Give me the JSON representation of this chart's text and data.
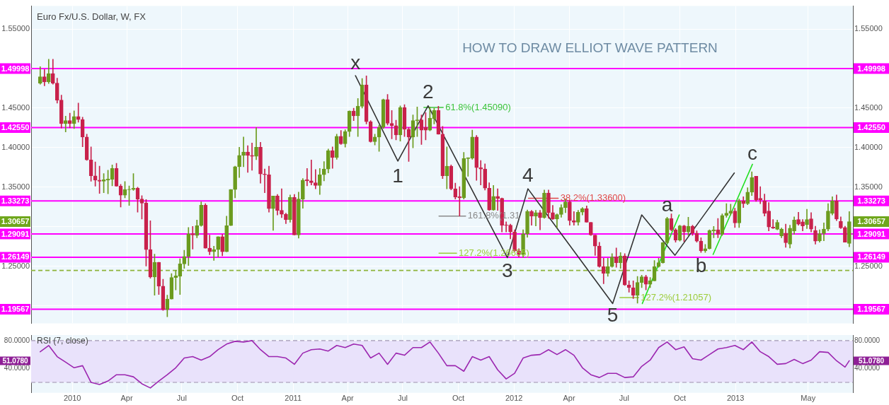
{
  "chart_data": [
    {
      "type": "candlestick",
      "title": "Euro Fx/U.S. Dollar, W, FX",
      "subtitle": "HOW TO DRAW ELLIOT WAVE PATTERN",
      "x": [
        "2009-11-09",
        "2009-11-16",
        "2009-11-23",
        "2009-11-30",
        "2009-12-07",
        "2009-12-14",
        "2009-12-21",
        "2009-12-28",
        "2010-01-04",
        "2010-01-11",
        "2010-01-18",
        "2010-01-25",
        "2010-02-01",
        "2010-02-08",
        "2010-02-15",
        "2010-02-22",
        "2010-03-01",
        "2010-03-08",
        "2010-03-15",
        "2010-03-22",
        "2010-03-29",
        "2010-04-05",
        "2010-04-12",
        "2010-04-19",
        "2010-04-26",
        "2010-05-03",
        "2010-05-10",
        "2010-05-17",
        "2010-05-24",
        "2010-05-31",
        "2010-06-07",
        "2010-06-14",
        "2010-06-21",
        "2010-06-28",
        "2010-07-05",
        "2010-07-12",
        "2010-07-19",
        "2010-07-26",
        "2010-08-02",
        "2010-08-09",
        "2010-08-16",
        "2010-08-23",
        "2010-08-30",
        "2010-09-06",
        "2010-09-13",
        "2010-09-20",
        "2010-09-27",
        "2010-10-04",
        "2010-10-11",
        "2010-10-18",
        "2010-10-25",
        "2010-11-01",
        "2010-11-08",
        "2010-11-15",
        "2010-11-22",
        "2010-11-29",
        "2010-12-06",
        "2010-12-13",
        "2010-12-20",
        "2010-12-27",
        "2011-01-03",
        "2011-01-10",
        "2011-01-17",
        "2011-01-24",
        "2011-01-31",
        "2011-02-07",
        "2011-02-14",
        "2011-02-21",
        "2011-02-28",
        "2011-03-07",
        "2011-03-14",
        "2011-03-21",
        "2011-03-28",
        "2011-04-04",
        "2011-04-11",
        "2011-04-18",
        "2011-04-25",
        "2011-05-02",
        "2011-05-09",
        "2011-05-16",
        "2011-05-23",
        "2011-05-30",
        "2011-06-06",
        "2011-06-13",
        "2011-06-20",
        "2011-06-27",
        "2011-07-04",
        "2011-07-11",
        "2011-07-18",
        "2011-07-25",
        "2011-08-01",
        "2011-08-08",
        "2011-08-15",
        "2011-08-22",
        "2011-08-29",
        "2011-09-05",
        "2011-09-12",
        "2011-09-19",
        "2011-09-26",
        "2011-10-03",
        "2011-10-10",
        "2011-10-17",
        "2011-10-24",
        "2011-10-31",
        "2011-11-07",
        "2011-11-14",
        "2011-11-21",
        "2011-11-28",
        "2011-12-05",
        "2011-12-12",
        "2011-12-19",
        "2011-12-26",
        "2012-01-02",
        "2012-01-09",
        "2012-01-16",
        "2012-01-23",
        "2012-01-30",
        "2012-02-06",
        "2012-02-13",
        "2012-02-20",
        "2012-02-27",
        "2012-03-05",
        "2012-03-12",
        "2012-03-19",
        "2012-03-26",
        "2012-04-02",
        "2012-04-09",
        "2012-04-16",
        "2012-04-23",
        "2012-04-30",
        "2012-05-07",
        "2012-05-14",
        "2012-05-21",
        "2012-05-28",
        "2012-06-04",
        "2012-06-11",
        "2012-06-18",
        "2012-06-25",
        "2012-07-02",
        "2012-07-09",
        "2012-07-16",
        "2012-07-23",
        "2012-07-30",
        "2012-08-06",
        "2012-08-13",
        "2012-08-20",
        "2012-08-27",
        "2012-09-03",
        "2012-09-10",
        "2012-09-17",
        "2012-09-24",
        "2012-10-01",
        "2012-10-08",
        "2012-10-15",
        "2012-10-22",
        "2012-10-29",
        "2012-11-05",
        "2012-11-12",
        "2012-11-19",
        "2012-11-26",
        "2012-12-03",
        "2012-12-10",
        "2012-12-17",
        "2012-12-24",
        "2012-12-31",
        "2013-01-07",
        "2013-01-14",
        "2013-01-21",
        "2013-01-28",
        "2013-02-04",
        "2013-02-11",
        "2013-02-18",
        "2013-02-25",
        "2013-03-04",
        "2013-03-11",
        "2013-03-18",
        "2013-03-25",
        "2013-04-01",
        "2013-04-08",
        "2013-04-15",
        "2013-04-22",
        "2013-04-29",
        "2013-05-06",
        "2013-05-13",
        "2013-05-20",
        "2013-05-27",
        "2013-06-03",
        "2013-06-10",
        "2013-06-17",
        "2013-06-24",
        "2013-07-01",
        "2013-07-08"
      ],
      "ohlc": [
        [
          1.4816,
          1.5023,
          1.4802,
          1.4897
        ],
        [
          1.4897,
          1.4989,
          1.4782,
          1.4831
        ],
        [
          1.4831,
          1.5118,
          1.481,
          1.4937
        ],
        [
          1.4937,
          1.5118,
          1.4802,
          1.4816
        ],
        [
          1.4816,
          1.4879,
          1.4563,
          1.4601
        ],
        [
          1.4601,
          1.4664,
          1.4247,
          1.4305
        ],
        [
          1.4305,
          1.4399,
          1.4198,
          1.4342
        ],
        [
          1.4342,
          1.4437,
          1.425,
          1.4305
        ],
        [
          1.4305,
          1.4466,
          1.4241,
          1.4394
        ],
        [
          1.4394,
          1.4563,
          1.4322,
          1.4356
        ],
        [
          1.4356,
          1.4385,
          1.4011,
          1.4135
        ],
        [
          1.4135,
          1.417,
          1.3839,
          1.3845
        ],
        [
          1.3845,
          1.4011,
          1.3575,
          1.3644
        ],
        [
          1.3644,
          1.3819,
          1.3514,
          1.3589
        ],
        [
          1.3589,
          1.3767,
          1.3422,
          1.3575
        ],
        [
          1.3575,
          1.3672,
          1.3431,
          1.3595
        ],
        [
          1.3589,
          1.3715,
          1.3417,
          1.3603
        ],
        [
          1.36,
          1.3782,
          1.3517,
          1.3738
        ],
        [
          1.3738,
          1.3802,
          1.351,
          1.3514
        ],
        [
          1.3514,
          1.3537,
          1.325,
          1.3399
        ],
        [
          1.3399,
          1.3572,
          1.3365,
          1.3471
        ],
        [
          1.3468,
          1.3517,
          1.327,
          1.3474
        ],
        [
          1.3471,
          1.3672,
          1.346,
          1.3488
        ],
        [
          1.3488,
          1.35,
          1.3184,
          1.335
        ],
        [
          1.335,
          1.3394,
          1.3098,
          1.3299
        ],
        [
          1.3299,
          1.3345,
          1.2503,
          1.2712
        ],
        [
          1.2712,
          1.3077,
          1.235,
          1.2365
        ],
        [
          1.2365,
          1.2655,
          1.2135,
          1.2552
        ],
        [
          1.2552,
          1.2552,
          1.2143,
          1.225
        ],
        [
          1.225,
          1.2336,
          1.1942,
          1.1951
        ],
        [
          1.1951,
          1.2135,
          1.1862,
          1.2086
        ],
        [
          1.2086,
          1.2408,
          1.2086,
          1.2359
        ],
        [
          1.2359,
          1.2451,
          1.2201,
          1.2379
        ],
        [
          1.2373,
          1.2597,
          1.2143,
          1.2531
        ],
        [
          1.2531,
          1.2704,
          1.2474,
          1.2626
        ],
        [
          1.2626,
          1.2991,
          1.2511,
          1.2911
        ],
        [
          1.2914,
          1.3005,
          1.2718,
          1.2896
        ],
        [
          1.2891,
          1.3086,
          1.2862,
          1.3014
        ],
        [
          1.3014,
          1.3316,
          1.3006,
          1.3273
        ],
        [
          1.3273,
          1.3293,
          1.273,
          1.273
        ],
        [
          1.273,
          1.2896,
          1.2646,
          1.2684
        ],
        [
          1.2684,
          1.2755,
          1.2574,
          1.2712
        ],
        [
          1.2712,
          1.2876,
          1.2618,
          1.2876
        ],
        [
          1.2876,
          1.2905,
          1.2632,
          1.2684
        ],
        [
          1.2684,
          1.3135,
          1.2684,
          1.3014
        ],
        [
          1.3014,
          1.3471,
          1.3014,
          1.3471
        ],
        [
          1.3471,
          1.3767,
          1.3365,
          1.3759
        ],
        [
          1.3759,
          1.4006,
          1.3623,
          1.3902
        ],
        [
          1.3902,
          1.4135,
          1.3759,
          1.3945
        ],
        [
          1.3945,
          1.4026,
          1.3687,
          1.3902
        ],
        [
          1.3902,
          1.406,
          1.3715,
          1.3891
        ],
        [
          1.3891,
          1.4256,
          1.3848,
          1.4006
        ],
        [
          1.4006,
          1.4069,
          1.3552,
          1.3667
        ],
        [
          1.3667,
          1.373,
          1.3431,
          1.3658
        ],
        [
          1.3658,
          1.3767,
          1.3184,
          1.323
        ],
        [
          1.323,
          1.3388,
          1.2954,
          1.3388
        ],
        [
          1.3388,
          1.3408,
          1.3149,
          1.3207
        ],
        [
          1.3207,
          1.348,
          1.3115,
          1.3158
        ],
        [
          1.3158,
          1.3172,
          1.304,
          1.3092
        ],
        [
          1.3092,
          1.3402,
          1.3057,
          1.3371
        ],
        [
          1.3371,
          1.3408,
          1.2896,
          1.2896
        ],
        [
          1.2896,
          1.3437,
          1.2856,
          1.335
        ],
        [
          1.335,
          1.3609,
          1.3235,
          1.3589
        ],
        [
          1.3595,
          1.3738,
          1.3517,
          1.358
        ],
        [
          1.358,
          1.3845,
          1.3529,
          1.3557
        ],
        [
          1.3557,
          1.3724,
          1.348,
          1.3523
        ],
        [
          1.3523,
          1.3738,
          1.3408,
          1.3658
        ],
        [
          1.3658,
          1.3825,
          1.358,
          1.373
        ],
        [
          1.373,
          1.3983,
          1.3681,
          1.3963
        ],
        [
          1.3963,
          1.4011,
          1.3738,
          1.3876
        ],
        [
          1.3876,
          1.417,
          1.3853,
          1.4144
        ],
        [
          1.4144,
          1.4218,
          1.404,
          1.4049
        ],
        [
          1.4049,
          1.4227,
          1.4006,
          1.4204
        ],
        [
          1.4204,
          1.4466,
          1.4141,
          1.4463
        ],
        [
          1.4463,
          1.45,
          1.4342,
          1.4402
        ],
        [
          1.4402,
          1.4621,
          1.4141,
          1.4523
        ],
        [
          1.4523,
          1.4874,
          1.45,
          1.4793
        ],
        [
          1.4793,
          1.4908,
          1.4299,
          1.4328
        ],
        [
          1.4328,
          1.4342,
          1.4069,
          1.4075
        ],
        [
          1.4075,
          1.417,
          1.4034,
          1.4135
        ],
        [
          1.4135,
          1.4285,
          1.3954,
          1.4256
        ],
        [
          1.4256,
          1.4615,
          1.4241,
          1.4609
        ],
        [
          1.4609,
          1.4673,
          1.4285,
          1.4308
        ],
        [
          1.4308,
          1.4471,
          1.4112,
          1.4279
        ],
        [
          1.4279,
          1.4348,
          1.4098,
          1.4161
        ],
        [
          1.4161,
          1.4529,
          1.4083,
          1.4509
        ],
        [
          1.4509,
          1.4543,
          1.4141,
          1.4233
        ],
        [
          1.4233,
          1.4256,
          1.3825,
          1.4135
        ],
        [
          1.4135,
          1.4414,
          1.3997,
          1.4342
        ],
        [
          1.4342,
          1.4514,
          1.4141,
          1.4351
        ],
        [
          1.4351,
          1.4414,
          1.404,
          1.4221
        ],
        [
          1.4256,
          1.4443,
          1.4098,
          1.4221
        ],
        [
          1.4221,
          1.4514,
          1.4213,
          1.4371
        ],
        [
          1.4365,
          1.45,
          1.4299,
          1.4471
        ],
        [
          1.4471,
          1.4523,
          1.417,
          1.417
        ],
        [
          1.417,
          1.427,
          1.3609,
          1.3644
        ],
        [
          1.3644,
          1.4011,
          1.348,
          1.3767
        ],
        [
          1.3767,
          1.3782,
          1.3466,
          1.348
        ],
        [
          1.348,
          1.3552,
          1.3351,
          1.3374
        ],
        [
          1.3379,
          1.3508,
          1.3135,
          1.3365
        ],
        [
          1.3365,
          1.394,
          1.335,
          1.3862
        ],
        [
          1.3862,
          1.3873,
          1.3638,
          1.3873
        ],
        [
          1.3868,
          1.4221,
          1.3853,
          1.4135
        ],
        [
          1.4135,
          1.4155,
          1.3586,
          1.3747
        ],
        [
          1.3747,
          1.3839,
          1.3529,
          1.373
        ],
        [
          1.373,
          1.3796,
          1.3465,
          1.3488
        ],
        [
          1.3488,
          1.3557,
          1.3207,
          1.3212
        ],
        [
          1.3212,
          1.3523,
          1.3207,
          1.3385
        ],
        [
          1.3385,
          1.348,
          1.3207,
          1.3359
        ],
        [
          1.3359,
          1.3365,
          1.2934,
          1.302
        ],
        [
          1.3023,
          1.3063,
          1.2934,
          1.302
        ],
        [
          1.302,
          1.3034,
          1.2847,
          1.2934
        ],
        [
          1.2934,
          1.2962,
          1.2689,
          1.2695
        ],
        [
          1.2695,
          1.2724,
          1.2618,
          1.2652
        ],
        [
          1.2652,
          1.2962,
          1.2612,
          1.2911
        ],
        [
          1.2911,
          1.3212,
          1.2868,
          1.3195
        ],
        [
          1.3195,
          1.3207,
          1.302,
          1.3135
        ],
        [
          1.3135,
          1.3207,
          1.3011,
          1.3178
        ],
        [
          1.3178,
          1.3207,
          1.2962,
          1.3115
        ],
        [
          1.3115,
          1.3465,
          1.3106,
          1.3428
        ],
        [
          1.3428,
          1.3465,
          1.3106,
          1.3178
        ],
        [
          1.3178,
          1.327,
          1.3092,
          1.3097
        ],
        [
          1.3097,
          1.3164,
          1.2991,
          1.3155
        ],
        [
          1.3155,
          1.3279,
          1.312,
          1.3244
        ],
        [
          1.3244,
          1.335,
          1.3178,
          1.3316
        ],
        [
          1.3316,
          1.3336,
          1.302,
          1.3077
        ],
        [
          1.3077,
          1.3192,
          1.302,
          1.3057
        ],
        [
          1.3057,
          1.3207,
          1.302,
          1.3184
        ],
        [
          1.3184,
          1.3244,
          1.3149,
          1.323
        ],
        [
          1.323,
          1.3264,
          1.3057,
          1.3057
        ],
        [
          1.3057,
          1.3057,
          1.2891,
          1.2896
        ],
        [
          1.2896,
          1.2896,
          1.2638,
          1.2756
        ],
        [
          1.2756,
          1.2804,
          1.2488,
          1.2497
        ],
        [
          1.2497,
          1.2603,
          1.2281,
          1.2411
        ],
        [
          1.2411,
          1.2603,
          1.2373,
          1.2497
        ],
        [
          1.2497,
          1.2661,
          1.2488,
          1.2618
        ],
        [
          1.2618,
          1.2733,
          1.2488,
          1.2546
        ],
        [
          1.2546,
          1.2675,
          1.2474,
          1.2632
        ],
        [
          1.2632,
          1.2661,
          1.2258,
          1.2264
        ],
        [
          1.2264,
          1.2316,
          1.2172,
          1.223
        ],
        [
          1.223,
          1.2316,
          1.2092,
          1.2135
        ],
        [
          1.2135,
          1.2373,
          1.2034,
          1.2296
        ],
        [
          1.2296,
          1.2388,
          1.223,
          1.2368
        ],
        [
          1.2368,
          1.2388,
          1.2201,
          1.2273
        ],
        [
          1.2273,
          1.2359,
          1.223,
          1.2316
        ],
        [
          1.2316,
          1.2574,
          1.2316,
          1.2497
        ],
        [
          1.2497,
          1.2603,
          1.2488,
          1.2546
        ],
        [
          1.2546,
          1.2804,
          1.254,
          1.2799
        ],
        [
          1.2799,
          1.312,
          1.279,
          1.3106
        ],
        [
          1.3106,
          1.3164,
          1.2948,
          1.2962
        ],
        [
          1.2962,
          1.2977,
          1.2804,
          1.2833
        ],
        [
          1.2833,
          1.302,
          1.2819,
          1.3011
        ],
        [
          1.3011,
          1.302,
          1.2813,
          1.2934
        ],
        [
          1.2934,
          1.312,
          1.2891,
          1.3006
        ],
        [
          1.3006,
          1.302,
          1.2891,
          1.2919
        ],
        [
          1.2919,
          1.2948,
          1.2804,
          1.2819
        ],
        [
          1.2819,
          1.2862,
          1.2675,
          1.2695
        ],
        [
          1.2695,
          1.2776,
          1.2675,
          1.2724
        ],
        [
          1.2724,
          1.2962,
          1.2718,
          1.2954
        ],
        [
          1.2948,
          1.3005,
          1.2862,
          1.2962
        ],
        [
          1.2962,
          1.3106,
          1.2862,
          1.2905
        ],
        [
          1.2905,
          1.3164,
          1.2891,
          1.3143
        ],
        [
          1.3143,
          1.3293,
          1.312,
          1.3172
        ],
        [
          1.3172,
          1.3287,
          1.3149,
          1.3198
        ],
        [
          1.3198,
          1.3235,
          1.2991,
          1.3049
        ],
        [
          1.3049,
          1.335,
          1.2991,
          1.3327
        ],
        [
          1.3327,
          1.3379,
          1.3244,
          1.3293
        ],
        [
          1.3293,
          1.3494,
          1.3279,
          1.3437
        ],
        [
          1.3437,
          1.3695,
          1.3394,
          1.3623
        ],
        [
          1.3638,
          1.3638,
          1.3322,
          1.3342
        ],
        [
          1.3359,
          1.3508,
          1.3293,
          1.3342
        ],
        [
          1.3327,
          1.3414,
          1.3135,
          1.3169
        ],
        [
          1.3198,
          1.3307,
          1.2948,
          1.2997
        ],
        [
          1.2997,
          1.3092,
          1.2977,
          1.2983
        ],
        [
          1.2968,
          1.3086,
          1.2962,
          1.3057
        ],
        [
          1.2885,
          1.2985,
          1.2862,
          1.2971
        ],
        [
          1.2919,
          1.3034,
          1.2741,
          1.2799
        ],
        [
          1.2781,
          1.302,
          1.2732,
          1.2983
        ],
        [
          1.2948,
          1.3126,
          1.2905,
          1.3086
        ],
        [
          1.3092,
          1.3184,
          1.302,
          1.3034
        ],
        [
          1.3063,
          1.3092,
          1.2948,
          1.3011
        ],
        [
          1.3026,
          1.3221,
          1.2977,
          1.3092
        ],
        [
          1.31,
          1.3178,
          1.2934,
          1.2971
        ],
        [
          1.2954,
          1.3006,
          1.2781,
          1.2819
        ],
        [
          1.2824,
          1.2962,
          1.2804,
          1.2914
        ],
        [
          1.2914,
          1.3049,
          1.2824,
          1.2971
        ],
        [
          1.2971,
          1.3293,
          1.2948,
          1.3198
        ],
        [
          1.3169,
          1.3379,
          1.3149,
          1.3327
        ],
        [
          1.3327,
          1.3402,
          1.3077,
          1.3097
        ],
        [
          1.3069,
          1.3126,
          1.2977,
          1.2985
        ],
        [
          1.2991,
          1.3006,
          1.2804,
          1.2804
        ],
        [
          1.279,
          1.3192,
          1.2747,
          1.30657
        ]
      ],
      "colors": [
        "#6b9b1e",
        "#c8214b",
        "#6b9b1e",
        "#c8214b",
        "#c8214b",
        "#c8214b",
        "#6b9b1e",
        "#c8214b",
        "#6b9b1e",
        "#c8214b",
        "#c8214b",
        "#c8214b",
        "#c8214b",
        "#c8214b",
        "#c8214b",
        "#6b9b1e",
        "#6b9b1e",
        "#6b9b1e",
        "#c8214b",
        "#c8214b",
        "#6b9b1e",
        "#6b9b1e",
        "#6b9b1e",
        "#c8214b",
        "#c8214b",
        "#c8214b",
        "#c8214b",
        "#6b9b1e",
        "#c8214b",
        "#c8214b",
        "#6b9b1e",
        "#6b9b1e",
        "#6b9b1e",
        "#6b9b1e",
        "#6b9b1e",
        "#6b9b1e",
        "#c8214b",
        "#6b9b1e",
        "#6b9b1e",
        "#c8214b",
        "#c8214b",
        "#6b9b1e",
        "#6b9b1e",
        "#c8214b",
        "#6b9b1e",
        "#6b9b1e",
        "#6b9b1e",
        "#6b9b1e",
        "#6b9b1e",
        "#c8214b",
        "#c8214b",
        "#6b9b1e",
        "#c8214b",
        "#c8214b",
        "#c8214b",
        "#6b9b1e",
        "#c8214b",
        "#c8214b",
        "#c8214b",
        "#6b9b1e",
        "#c8214b",
        "#6b9b1e",
        "#6b9b1e",
        "#c8214b",
        "#c8214b",
        "#c8214b",
        "#6b9b1e",
        "#6b9b1e",
        "#6b9b1e",
        "#c8214b",
        "#6b9b1e",
        "#c8214b",
        "#6b9b1e",
        "#6b9b1e",
        "#c8214b",
        "#6b9b1e",
        "#6b9b1e",
        "#c8214b",
        "#c8214b",
        "#6b9b1e",
        "#6b9b1e",
        "#6b9b1e",
        "#c8214b",
        "#c8214b",
        "#c8214b",
        "#6b9b1e",
        "#c8214b",
        "#c8214b",
        "#6b9b1e",
        "#6b9b1e",
        "#c8214b",
        "#c8214b",
        "#6b9b1e",
        "#6b9b1e",
        "#c8214b",
        "#c8214b",
        "#6b9b1e",
        "#c8214b",
        "#c8214b",
        "#c8214b",
        "#6b9b1e",
        "#6b9b1e",
        "#6b9b1e",
        "#c8214b",
        "#c8214b",
        "#c8214b",
        "#c8214b",
        "#6b9b1e",
        "#c8214b",
        "#c8214b",
        "#c8214b",
        "#c8214b",
        "#c8214b",
        "#c8214b",
        "#6b9b1e",
        "#6b9b1e",
        "#c8214b",
        "#6b9b1e",
        "#c8214b",
        "#6b9b1e",
        "#c8214b",
        "#c8214b",
        "#6b9b1e",
        "#6b9b1e",
        "#6b9b1e",
        "#c8214b",
        "#c8214b",
        "#6b9b1e",
        "#6b9b1e",
        "#c8214b",
        "#c8214b",
        "#c8214b",
        "#c8214b",
        "#c8214b",
        "#6b9b1e",
        "#6b9b1e",
        "#c8214b",
        "#6b9b1e",
        "#c8214b",
        "#c8214b",
        "#c8214b",
        "#6b9b1e",
        "#6b9b1e",
        "#c8214b",
        "#6b9b1e",
        "#6b9b1e",
        "#6b9b1e",
        "#6b9b1e",
        "#6b9b1e",
        "#c8214b",
        "#c8214b",
        "#6b9b1e",
        "#c8214b",
        "#6b9b1e",
        "#c8214b",
        "#c8214b",
        "#c8214b",
        "#6b9b1e",
        "#6b9b1e",
        "#6b9b1e",
        "#c8214b",
        "#6b9b1e",
        "#6b9b1e",
        "#6b9b1e",
        "#c8214b",
        "#6b9b1e",
        "#c8214b",
        "#6b9b1e",
        "#6b9b1e",
        "#c8214b",
        "#c8214b",
        "#c8214b",
        "#c8214b",
        "#c8214b",
        "#6b9b1e",
        "#6b9b1e",
        "#c8214b",
        "#6b9b1e",
        "#6b9b1e",
        "#c8214b",
        "#c8214b",
        "#6b9b1e",
        "#c8214b",
        "#c8214b",
        "#6b9b1e",
        "#6b9b1e",
        "#6b9b1e",
        "#6b9b1e",
        "#c8214b",
        "#c8214b",
        "#c8214b",
        "#6b9b1e"
      ],
      "series": [
        {
          "type": "line",
          "color": "#333333",
          "x": [
            "2011-04-14",
            "2011-06-23",
            "2011-08-12",
            "2011-12-21",
            "2012-01-24",
            "2012-06-12",
            "2012-07-30",
            "2012-09-23",
            "2012-12-30"
          ],
          "values": [
            1.491,
            1.383,
            1.453,
            1.261,
            1.348,
            1.203,
            1.315,
            1.264,
            1.368
          ]
        },
        {
          "type": "line",
          "color": "#22e022",
          "x": [
            "2012-07-31",
            "2012-09-30"
          ],
          "values": [
            1.203,
            1.315
          ]
        },
        {
          "type": "line",
          "color": "#22e022",
          "x": [
            "2012-11-25",
            "2013-01-29"
          ],
          "values": [
            1.265,
            1.379
          ]
        },
        {
          "type": "line",
          "color": "#3cc43c",
          "x": [
            "2011-08-05",
            "2011-09-06"
          ],
          "values": [
            1.4509,
            1.4509
          ]
        },
        {
          "type": "line",
          "color": "#e04848",
          "x": [
            "2012-01-25",
            "2012-03-14"
          ],
          "values": [
            1.336,
            1.336
          ]
        },
        {
          "type": "line",
          "color": "#8a8a8a",
          "x": [
            "2011-08-30",
            "2011-10-13"
          ],
          "values": [
            1.3135,
            1.3135
          ]
        },
        {
          "type": "line",
          "color": "#9ccc3a",
          "x": [
            "2011-08-30",
            "2011-09-28"
          ],
          "values": [
            1.26655,
            1.26655
          ]
        },
        {
          "type": "line",
          "color": "#9ccc3a",
          "x": [
            "2012-06-24",
            "2012-07-25"
          ],
          "values": [
            1.21057,
            1.21057
          ]
        }
      ],
      "xlim": [
        "2009-10-25",
        "2013-07-14"
      ],
      "xticks": [
        {
          "value": "2010-01",
          "label": null
        },
        {
          "value": "2010-04",
          "label": null
        },
        {
          "value": "2010-07",
          "label": null
        },
        {
          "value": "2010-10",
          "label": null
        },
        {
          "value": "2011-01",
          "label": null
        },
        {
          "value": "2011-04",
          "label": null
        },
        {
          "value": "2011-07",
          "label": null
        },
        {
          "value": "2011-10",
          "label": null
        },
        {
          "value": "2012-01",
          "label": null
        },
        {
          "value": "2012-04",
          "label": null
        },
        {
          "value": "2012-07",
          "label": null
        },
        {
          "value": "2012-10",
          "label": null
        },
        {
          "value": "2013-01",
          "label": null
        },
        {
          "value": "2013-05",
          "label": null
        }
      ],
      "ylim": [
        1.178,
        1.579
      ],
      "yticks": [
        {
          "value": 1.2,
          "label": null
        },
        {
          "value": 1.25,
          "label": "1.25000"
        },
        {
          "value": 1.3,
          "label": null
        },
        {
          "value": 1.35,
          "label": "1.35000"
        },
        {
          "value": 1.4,
          "label": "1.40000"
        },
        {
          "value": 1.45,
          "label": "1.45000"
        },
        {
          "value": 1.5,
          "label": null
        },
        {
          "value": 1.55,
          "label": "1.55000"
        }
      ],
      "y2lim": [
        1.178,
        1.579
      ],
      "y2ticks": [
        {
          "value": 1.2,
          "label": null
        },
        {
          "value": 1.25,
          "label": "1.25000"
        },
        {
          "value": 1.3,
          "label": null
        },
        {
          "value": 1.35,
          "label": "1.35000"
        },
        {
          "value": 1.4,
          "label": "1.40000"
        },
        {
          "value": 1.45,
          "label": "1.45000"
        },
        {
          "value": 1.5,
          "label": null
        },
        {
          "value": 1.55,
          "label": "1.55000"
        }
      ],
      "tick_labels": "y",
      "grid": true,
      "legend": false,
      "marker": "none",
      "ref_lines": [
        {
          "axis": "y",
          "value": 1.49998,
          "label": "1.49998",
          "color": "#ff00ff"
        },
        {
          "axis": "y",
          "value": 1.4255,
          "label": "1.42550",
          "color": "#ff00ff"
        },
        {
          "axis": "y",
          "value": 1.33273,
          "label": "1.33273",
          "color": "#ff00ff"
        },
        {
          "axis": "y",
          "value": 1.29091,
          "label": "1.29091",
          "color": "#ff00ff"
        },
        {
          "axis": "y",
          "value": 1.26149,
          "label": "1.26149",
          "color": "#ff00ff"
        },
        {
          "axis": "y",
          "value": 1.19567,
          "label": "1.19567",
          "color": "#ff00ff"
        },
        {
          "axis": "y",
          "value": 1.2448,
          "color": "#8db43a",
          "line_style": "dashed"
        }
      ],
      "annotations": [
        {
          "text": "x",
          "x": "2011-04-14",
          "y": 1.491
        },
        {
          "text": "1",
          "x": "2011-06-23",
          "y": 1.383
        },
        {
          "text": "2",
          "x": "2011-08-12",
          "y": 1.453
        },
        {
          "text": "3",
          "x": "2011-12-21",
          "y": 1.261
        },
        {
          "text": "4",
          "x": "2012-01-24",
          "y": 1.348
        },
        {
          "text": "5",
          "x": "2012-06-12",
          "y": 1.203
        },
        {
          "text": "a",
          "x": "2012-09-10",
          "y": 1.312
        },
        {
          "text": "b",
          "x": "2012-11-05",
          "y": 1.2675
        },
        {
          "text": "c",
          "x": "2013-01-29",
          "y": 1.379
        },
        {
          "text": "61.8%(1.45090)",
          "x": "2011-09-06",
          "y": 1.4509
        },
        {
          "text": "38.2%(1.33600)",
          "x": "2012-03-14",
          "y": 1.336
        },
        {
          "text": "161.8%(1.31",
          "x": "2011-10-13",
          "y": 1.3135
        },
        {
          "text": "127.2%(1.26655)",
          "x": "2011-09-28",
          "y": 1.26655
        },
        {
          "text": "127.2%(1.21057)",
          "x": "2012-07-25",
          "y": 1.21057
        },
        "1.30657"
      ]
    },
    {
      "type": "line",
      "title": "RSI (7, close)",
      "x": [
        "2009-11-09",
        "2009-11-23",
        "2009-12-07",
        "2009-12-21",
        "2010-01-04",
        "2010-01-18",
        "2010-02-01",
        "2010-02-15",
        "2010-03-01",
        "2010-03-15",
        "2010-03-29",
        "2010-04-12",
        "2010-04-26",
        "2010-05-10",
        "2010-05-24",
        "2010-06-07",
        "2010-06-21",
        "2010-07-05",
        "2010-07-19",
        "2010-08-02",
        "2010-08-16",
        "2010-08-30",
        "2010-09-13",
        "2010-09-27",
        "2010-10-11",
        "2010-10-25",
        "2010-11-08",
        "2010-11-22",
        "2010-12-06",
        "2010-12-20",
        "2011-01-03",
        "2011-01-17",
        "2011-01-31",
        "2011-02-14",
        "2011-02-28",
        "2011-03-14",
        "2011-03-28",
        "2011-04-11",
        "2011-04-25",
        "2011-05-09",
        "2011-05-23",
        "2011-06-06",
        "2011-06-20",
        "2011-07-04",
        "2011-07-18",
        "2011-08-01",
        "2011-08-15",
        "2011-08-29",
        "2011-09-12",
        "2011-09-26",
        "2011-10-10",
        "2011-10-24",
        "2011-11-07",
        "2011-11-21",
        "2011-12-05",
        "2011-12-19",
        "2012-01-02",
        "2012-01-16",
        "2012-01-30",
        "2012-02-13",
        "2012-02-27",
        "2012-03-12",
        "2012-03-26",
        "2012-04-09",
        "2012-04-23",
        "2012-05-07",
        "2012-05-21",
        "2012-06-04",
        "2012-06-18",
        "2012-07-02",
        "2012-07-16",
        "2012-07-30",
        "2012-08-13",
        "2012-08-27",
        "2012-09-10",
        "2012-09-24",
        "2012-10-08",
        "2012-10-22",
        "2012-11-05",
        "2012-11-19",
        "2012-12-03",
        "2012-12-17",
        "2012-12-31",
        "2013-01-14",
        "2013-01-28",
        "2013-02-11",
        "2013-02-25",
        "2013-03-11",
        "2013-03-25",
        "2013-04-08",
        "2013-04-22",
        "2013-05-06",
        "2013-05-20",
        "2013-06-03",
        "2013-06-17",
        "2013-07-01",
        "2013-07-08"
      ],
      "series": [
        {
          "color": "#9c27b0",
          "values": [
            64,
            73,
            57,
            49,
            41,
            44,
            20,
            17,
            22,
            31,
            31,
            28,
            18,
            12,
            22,
            31,
            41,
            55,
            57,
            52,
            57,
            67,
            75,
            79,
            78,
            80,
            67,
            57,
            57,
            55,
            46,
            62,
            67,
            68,
            65,
            73,
            70,
            75,
            73,
            55,
            62,
            46,
            62,
            59,
            70,
            70,
            78,
            62,
            44,
            44,
            36,
            57,
            52,
            57,
            38,
            25,
            33,
            55,
            59,
            60,
            67,
            60,
            67,
            59,
            41,
            31,
            27,
            33,
            33,
            27,
            28,
            43,
            52,
            70,
            78,
            67,
            71,
            54,
            52,
            60,
            68,
            70,
            73,
            67,
            78,
            64,
            57,
            46,
            47,
            53,
            47,
            52,
            64,
            63,
            51,
            42,
            51.078
          ]
        }
      ],
      "xlim": [
        "2009-10-25",
        "2013-07-14"
      ],
      "xticks": [
        {
          "value": "2010",
          "label": "2010"
        },
        {
          "value": "2010-04",
          "label": "Apr"
        },
        {
          "value": "2010-07",
          "label": "Jul"
        },
        {
          "value": "2010-10",
          "label": "Oct"
        },
        {
          "value": "2011",
          "label": "2011"
        },
        {
          "value": "2011-04",
          "label": "Apr"
        },
        {
          "value": "2011-07",
          "label": "Jul"
        },
        {
          "value": "2011-10",
          "label": "Oct"
        },
        {
          "value": "2012",
          "label": "2012"
        },
        {
          "value": "2012-04",
          "label": "Apr"
        },
        {
          "value": "2012-07",
          "label": "Jul"
        },
        {
          "value": "2012-10",
          "label": "Oct"
        },
        {
          "value": "2013",
          "label": "2013"
        },
        {
          "value": "2013-05",
          "label": "May"
        }
      ],
      "ylim": [
        5,
        88
      ],
      "yticks": [
        {
          "value": 80,
          "label": "80.0000"
        },
        {
          "value": 40,
          "label": "40.0000"
        }
      ],
      "y2lim": [
        5,
        88
      ],
      "y2ticks": [
        {
          "value": 80,
          "label": "80.0000"
        },
        {
          "value": 40,
          "label": "40.0000"
        }
      ],
      "ref_lines": [
        {
          "axis": "y",
          "value": 80,
          "color": "#b8b0c8",
          "line_style": "dashed"
        },
        {
          "axis": "y",
          "value": 20,
          "color": "#b8b0c8",
          "line_style": "dashed"
        }
      ],
      "grid": true,
      "legend": false,
      "marker": "none",
      "bands": [
        {
          "axis": "y",
          "from": 20,
          "to": 80,
          "color": "#e9e2fb"
        }
      ],
      "annotations": [
        {
          "text": "51.0780",
          "x": "2013-07-08",
          "y": 51.078
        }
      ]
    }
  ]
}
